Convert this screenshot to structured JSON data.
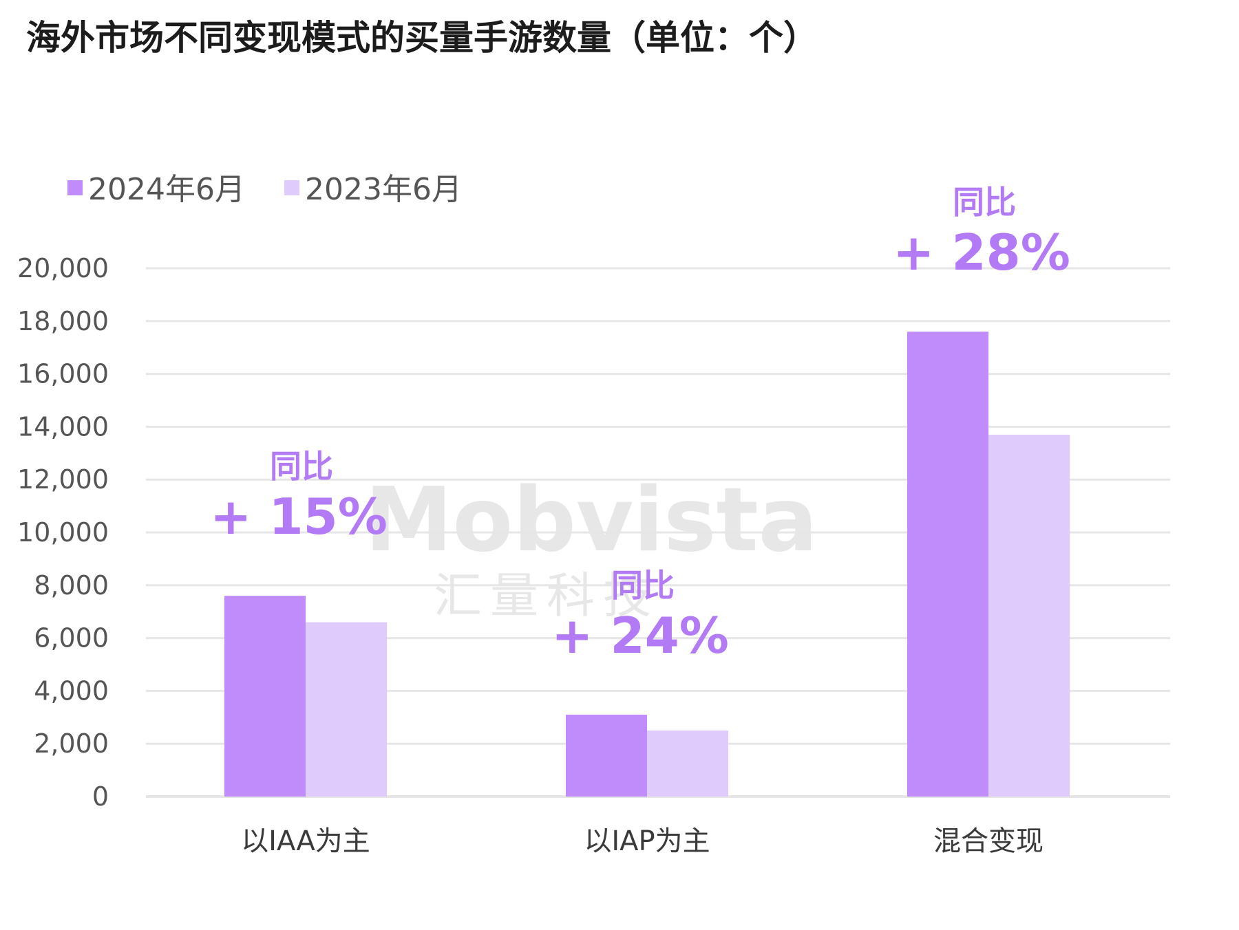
{
  "chart_data": {
    "type": "bar",
    "title": "海外市场不同变现模式的买量手游数量（单位：个）",
    "categories": [
      "以IAA为主",
      "以IAP为主",
      "混合变现"
    ],
    "series": [
      {
        "name": "2024年6月",
        "color": "#c08cfb",
        "values": [
          7600,
          3100,
          17600
        ]
      },
      {
        "name": "2023年6月",
        "color": "#dfcbfc",
        "values": [
          6600,
          2500,
          13700
        ]
      }
    ],
    "ylim": [
      0,
      20000
    ],
    "yticks": [
      0,
      2000,
      4000,
      6000,
      8000,
      10000,
      12000,
      14000,
      16000,
      18000,
      20000
    ],
    "ytick_labels": [
      "0",
      "2,000",
      "4,000",
      "6,000",
      "8,000",
      "10,000",
      "12,000",
      "14,000",
      "16,000",
      "18,000",
      "20,000"
    ],
    "grid": true,
    "legend_position": "top-left",
    "annotations": [
      {
        "category": "以IAA为主",
        "label": "同比",
        "value": "+ 15%"
      },
      {
        "category": "以IAP为主",
        "label": "同比",
        "value": "+ 24%"
      },
      {
        "category": "混合变现",
        "label": "同比",
        "value": "+ 28%"
      }
    ],
    "annotation_color": "#b27af5",
    "gridline_color": "#e6e6e6"
  },
  "watermark": {
    "latin": "Mobvista",
    "chinese": "汇量科技"
  }
}
